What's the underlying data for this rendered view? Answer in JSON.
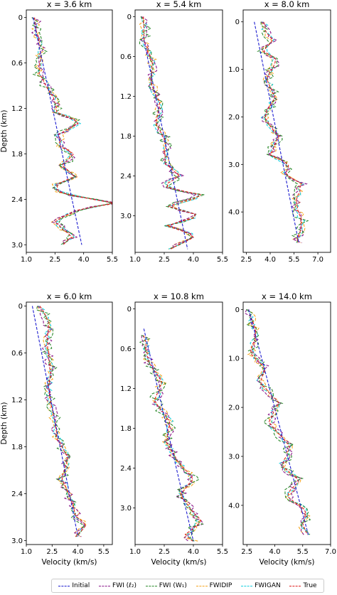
{
  "chart_data": {
    "type": "line",
    "legend_placement": "bottom-center",
    "series_styles": [
      {
        "name": "Initial",
        "color": "#1f1fd0"
      },
      {
        "name": "FWI (ℓ₂)",
        "color": "#8b1a8b"
      },
      {
        "name": "FWI (W₁)",
        "color": "#2e8b2e"
      },
      {
        "name": "FWIDIP",
        "color": "#f5a623"
      },
      {
        "name": "FWIGAN",
        "color": "#17d0e0"
      },
      {
        "name": "True",
        "color": "#e02020"
      }
    ],
    "panels": [
      {
        "title": "x = 3.6 km",
        "xlabel": "",
        "ylabel": "Depth (km)",
        "xlim": [
          1.0,
          5.5
        ],
        "ylim": [
          3.1,
          -0.1
        ],
        "xticks": [
          "1.0",
          "2.5",
          "4.0",
          "5.5"
        ],
        "yticks": [
          [
            "0",
            0
          ],
          [
            "0.6",
            0.6
          ],
          [
            "1.2",
            1.2
          ],
          [
            "1.8",
            1.8
          ],
          [
            "2.4",
            2.4
          ],
          [
            "3.0",
            3.0
          ]
        ],
        "initial": [
          [
            1.35,
            0
          ],
          [
            3.9,
            3.0
          ]
        ],
        "truth": [
          [
            1.45,
            0
          ],
          [
            1.55,
            0.2
          ],
          [
            1.75,
            0.45
          ],
          [
            1.7,
            0.75
          ],
          [
            2.4,
            1.05
          ],
          [
            2.6,
            1.25
          ],
          [
            3.8,
            1.38
          ],
          [
            2.7,
            1.55
          ],
          [
            2.8,
            1.7
          ],
          [
            3.5,
            1.8
          ],
          [
            2.9,
            1.95
          ],
          [
            3.5,
            2.1
          ],
          [
            2.6,
            2.2
          ],
          [
            2.7,
            2.3
          ],
          [
            4.0,
            2.38
          ],
          [
            5.55,
            2.45
          ],
          [
            3.5,
            2.55
          ],
          [
            2.5,
            2.7
          ],
          [
            3.4,
            2.9
          ],
          [
            2.9,
            3.0
          ]
        ]
      },
      {
        "title": "x = 5.4 km",
        "xlabel": "",
        "ylabel": "",
        "xlim": [
          1.0,
          5.5
        ],
        "ylim": [
          3.55,
          -0.1
        ],
        "xticks": [
          "1.0",
          "2.5",
          "4.0",
          "5.5"
        ],
        "yticks": [
          [
            "0",
            0
          ],
          [
            "0.6",
            0.6
          ],
          [
            "1.2",
            1.2
          ],
          [
            "1.8",
            1.8
          ],
          [
            "2.4",
            2.4
          ],
          [
            "3.0",
            3.0
          ]
        ],
        "initial": [
          [
            1.45,
            0.35
          ],
          [
            3.7,
            3.5
          ]
        ],
        "truth": [
          [
            1.45,
            0
          ],
          [
            1.5,
            0.4
          ],
          [
            1.9,
            0.7
          ],
          [
            1.8,
            1.0
          ],
          [
            2.3,
            1.3
          ],
          [
            2.1,
            1.6
          ],
          [
            2.6,
            1.9
          ],
          [
            2.5,
            2.2
          ],
          [
            3.3,
            2.4
          ],
          [
            2.4,
            2.55
          ],
          [
            4.6,
            2.7
          ],
          [
            2.6,
            2.85
          ],
          [
            4.4,
            3.0
          ],
          [
            2.6,
            3.15
          ],
          [
            4.2,
            3.3
          ],
          [
            2.8,
            3.5
          ]
        ]
      },
      {
        "title": "x = 8.0 km",
        "xlabel": "",
        "ylabel": "",
        "xlim": [
          2.3,
          7.8
        ],
        "ylim": [
          4.85,
          -0.25
        ],
        "xticks": [
          "2.5",
          "4.0",
          "5.5",
          "7.0"
        ],
        "yticks": [
          [
            "0",
            0
          ],
          [
            "1.0",
            1.0
          ],
          [
            "2.0",
            2.0
          ],
          [
            "3.0",
            3.0
          ],
          [
            "4.0",
            4.0
          ]
        ],
        "initial": [
          [
            3.0,
            0
          ],
          [
            5.8,
            4.65
          ]
        ],
        "truth": [
          [
            3.6,
            0
          ],
          [
            3.7,
            0.2
          ],
          [
            4.2,
            0.4
          ],
          [
            3.5,
            0.6
          ],
          [
            4.4,
            0.8
          ],
          [
            3.8,
            1.2
          ],
          [
            4.3,
            1.6
          ],
          [
            3.6,
            2.0
          ],
          [
            4.5,
            2.4
          ],
          [
            4.0,
            2.8
          ],
          [
            5.2,
            3.0
          ],
          [
            4.9,
            3.2
          ],
          [
            6.0,
            3.4
          ],
          [
            5.6,
            3.8
          ],
          [
            6.0,
            4.2
          ],
          [
            5.7,
            4.65
          ]
        ]
      },
      {
        "title": "x = 6.0 km",
        "xlabel": "Velocity (km/s)",
        "ylabel": "Depth (km)",
        "xlim": [
          1.0,
          6.0
        ],
        "ylim": [
          3.05,
          -0.05
        ],
        "xticks": [
          "1.0",
          "2.5",
          "4.0",
          "5.5"
        ],
        "yticks": [
          [
            "0",
            0
          ],
          [
            "0.6",
            0.6
          ],
          [
            "1.2",
            1.2
          ],
          [
            "1.8",
            1.8
          ],
          [
            "2.4",
            2.4
          ],
          [
            "3.0",
            3.0
          ]
        ],
        "initial": [
          [
            1.35,
            0
          ],
          [
            4.0,
            2.95
          ]
        ],
        "truth": [
          [
            1.8,
            0
          ],
          [
            2.3,
            0.2
          ],
          [
            2.2,
            0.5
          ],
          [
            2.4,
            0.8
          ],
          [
            2.3,
            1.1
          ],
          [
            2.6,
            1.4
          ],
          [
            2.8,
            1.7
          ],
          [
            3.4,
            1.95
          ],
          [
            3.1,
            2.2
          ],
          [
            3.6,
            2.5
          ],
          [
            3.9,
            2.7
          ],
          [
            4.5,
            2.8
          ],
          [
            3.9,
            2.95
          ]
        ]
      },
      {
        "title": "x = 10.8 km",
        "xlabel": "Velocity (km/s)",
        "ylabel": "",
        "xlim": [
          1.0,
          5.5
        ],
        "ylim": [
          3.55,
          -0.1
        ],
        "xticks": [
          "1.0",
          "2.5",
          "4.0",
          "5.5"
        ],
        "yticks": [
          [
            "0",
            0
          ],
          [
            "0.6",
            0.6
          ],
          [
            "1.2",
            1.2
          ],
          [
            "1.8",
            1.8
          ],
          [
            "2.4",
            2.4
          ],
          [
            "3.0",
            3.0
          ]
        ],
        "initial": [
          [
            1.45,
            0.3
          ],
          [
            4.0,
            3.5
          ]
        ],
        "truth": [
          [
            1.45,
            0.4
          ],
          [
            1.7,
            0.8
          ],
          [
            2.4,
            1.1
          ],
          [
            2.0,
            1.4
          ],
          [
            2.8,
            1.7
          ],
          [
            2.6,
            2.0
          ],
          [
            3.2,
            2.3
          ],
          [
            4.0,
            2.55
          ],
          [
            3.3,
            2.8
          ],
          [
            3.8,
            3.0
          ],
          [
            4.4,
            3.2
          ],
          [
            3.6,
            3.4
          ],
          [
            4.0,
            3.5
          ]
        ]
      },
      {
        "title": "x = 14.0 km",
        "xlabel": "Velocity (km/s)",
        "ylabel": "",
        "xlim": [
          2.3,
          7.0
        ],
        "ylim": [
          4.8,
          -0.15
        ],
        "xticks": [
          "2.5",
          "4.0",
          "5.5",
          "7.0"
        ],
        "yticks": [
          [
            "0",
            0
          ],
          [
            "1.0",
            1.0
          ],
          [
            "2.0",
            2.0
          ],
          [
            "3.0",
            3.0
          ],
          [
            "4.0",
            4.0
          ]
        ],
        "initial": [
          [
            2.6,
            0
          ],
          [
            5.8,
            4.6
          ]
        ],
        "truth": [
          [
            2.6,
            0
          ],
          [
            3.0,
            0.5
          ],
          [
            2.7,
            0.9
          ],
          [
            3.5,
            1.2
          ],
          [
            3.2,
            1.5
          ],
          [
            4.2,
            1.9
          ],
          [
            3.7,
            2.3
          ],
          [
            4.8,
            2.8
          ],
          [
            4.4,
            3.2
          ],
          [
            5.3,
            3.5
          ],
          [
            4.6,
            3.8
          ],
          [
            5.7,
            4.1
          ],
          [
            5.5,
            4.4
          ],
          [
            5.8,
            4.6
          ]
        ]
      }
    ]
  }
}
